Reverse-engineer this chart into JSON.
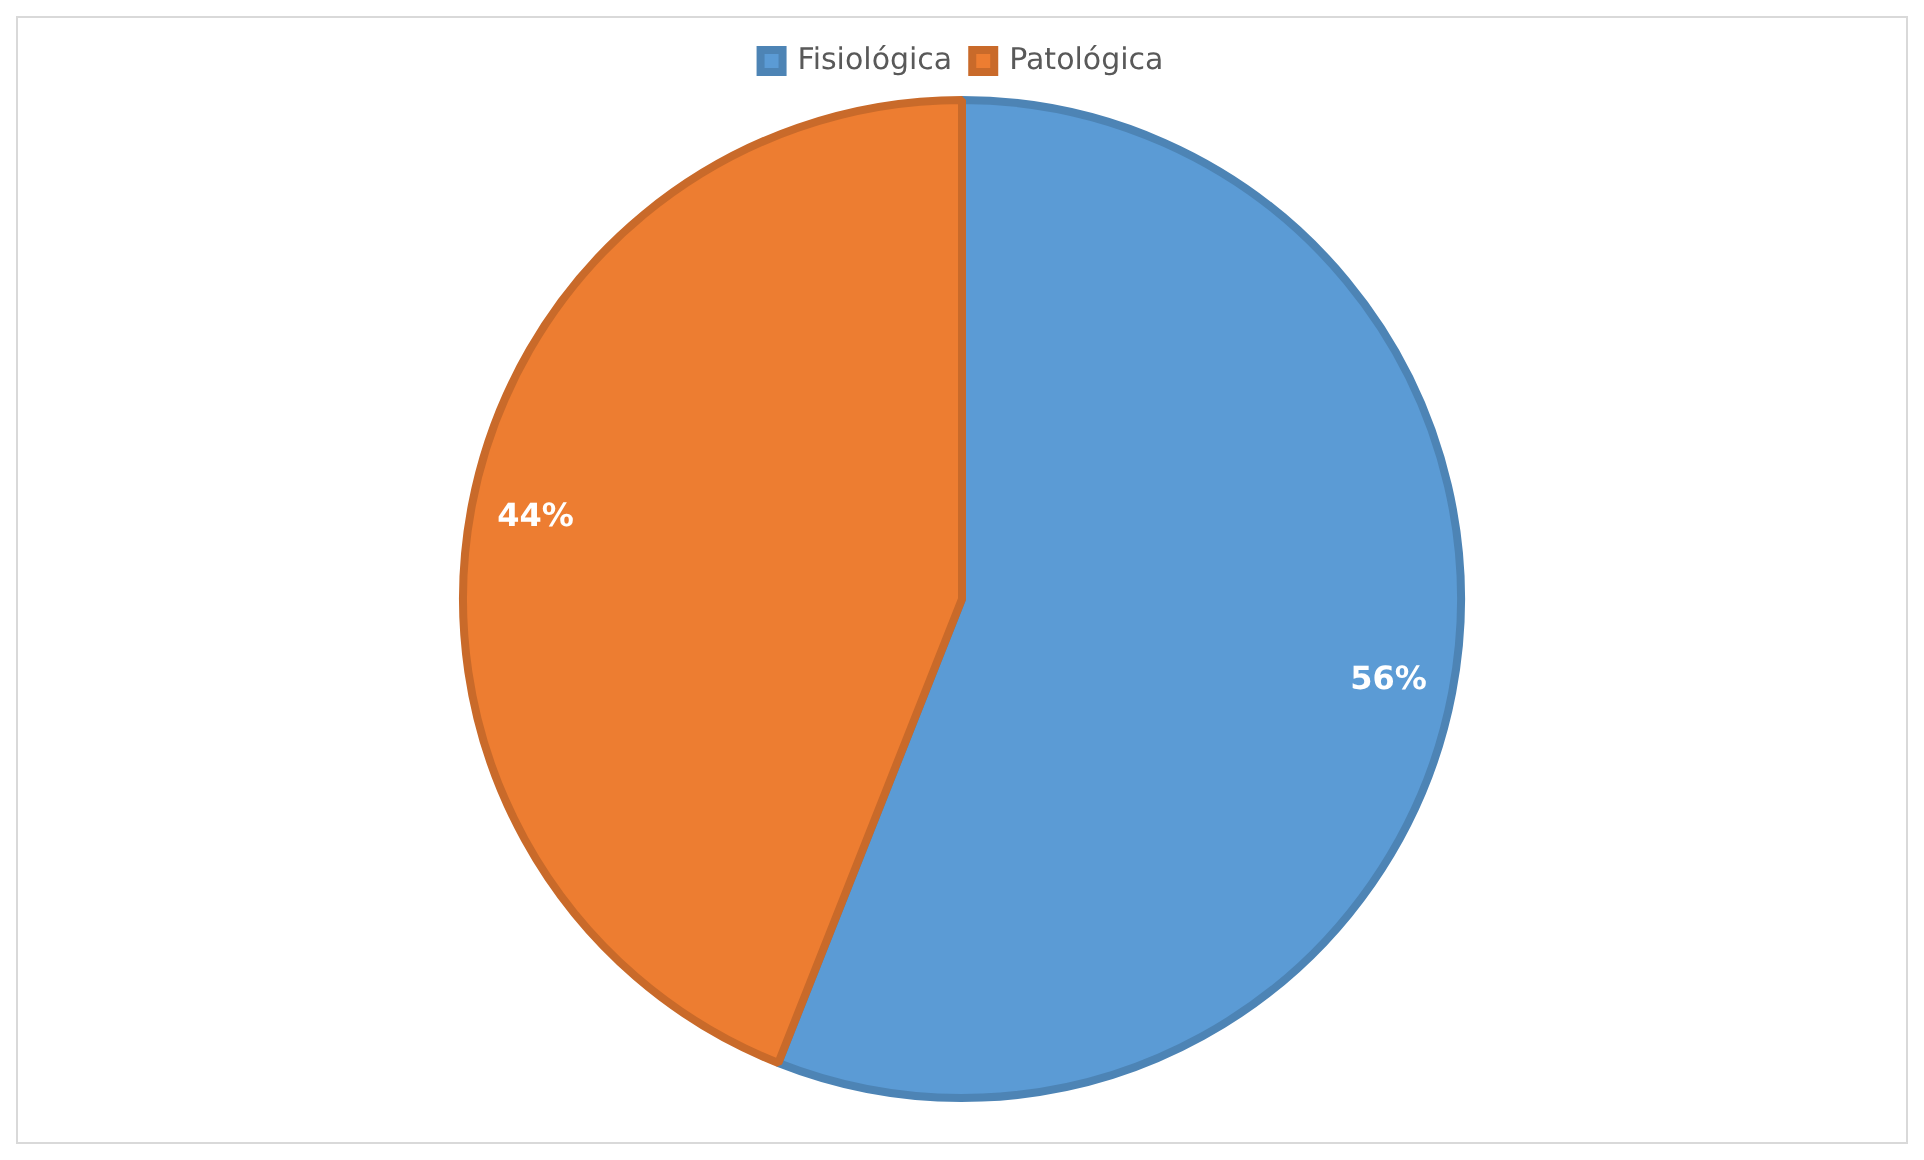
{
  "chart_data": {
    "type": "pie",
    "categories": [
      "Fisiológica",
      "Patológica"
    ],
    "values": [
      56,
      44
    ],
    "colors": [
      "#5b9bd5",
      "#ed7d31"
    ],
    "value_labels": [
      "56%",
      "44%"
    ],
    "legend": "top"
  }
}
